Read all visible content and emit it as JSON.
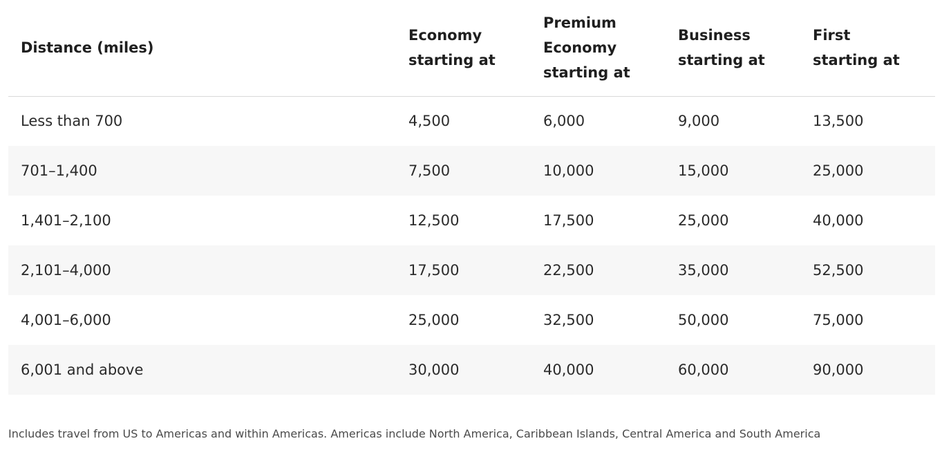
{
  "table": {
    "headers": [
      "Distance (miles)",
      "Economy\nstarting at",
      "Premium\nEconomy\nstarting at",
      "Business\nstarting at",
      "First\nstarting at"
    ],
    "rows": [
      [
        "Less than 700",
        "4,500",
        "6,000",
        "9,000",
        "13,500"
      ],
      [
        "701–1,400",
        "7,500",
        "10,000",
        "15,000",
        "25,000"
      ],
      [
        "1,401–2,100",
        "12,500",
        "17,500",
        "25,000",
        "40,000"
      ],
      [
        "2,101–4,000",
        "17,500",
        "22,500",
        "35,000",
        "52,500"
      ],
      [
        "4,001–6,000",
        "25,000",
        "32,500",
        "50,000",
        "75,000"
      ],
      [
        "6,001 and above",
        "30,000",
        "40,000",
        "60,000",
        "90,000"
      ]
    ]
  },
  "footnote": "Includes travel from US to Americas and within Americas. Americas include North America, Caribbean Islands, Central America and South America",
  "colors": {
    "header_text": "#1f1f1f",
    "body_text": "#2b2b2b",
    "stripe": "#f7f7f7",
    "divider": "#d9d9d9",
    "footnote_text": "#4a4a4a"
  }
}
